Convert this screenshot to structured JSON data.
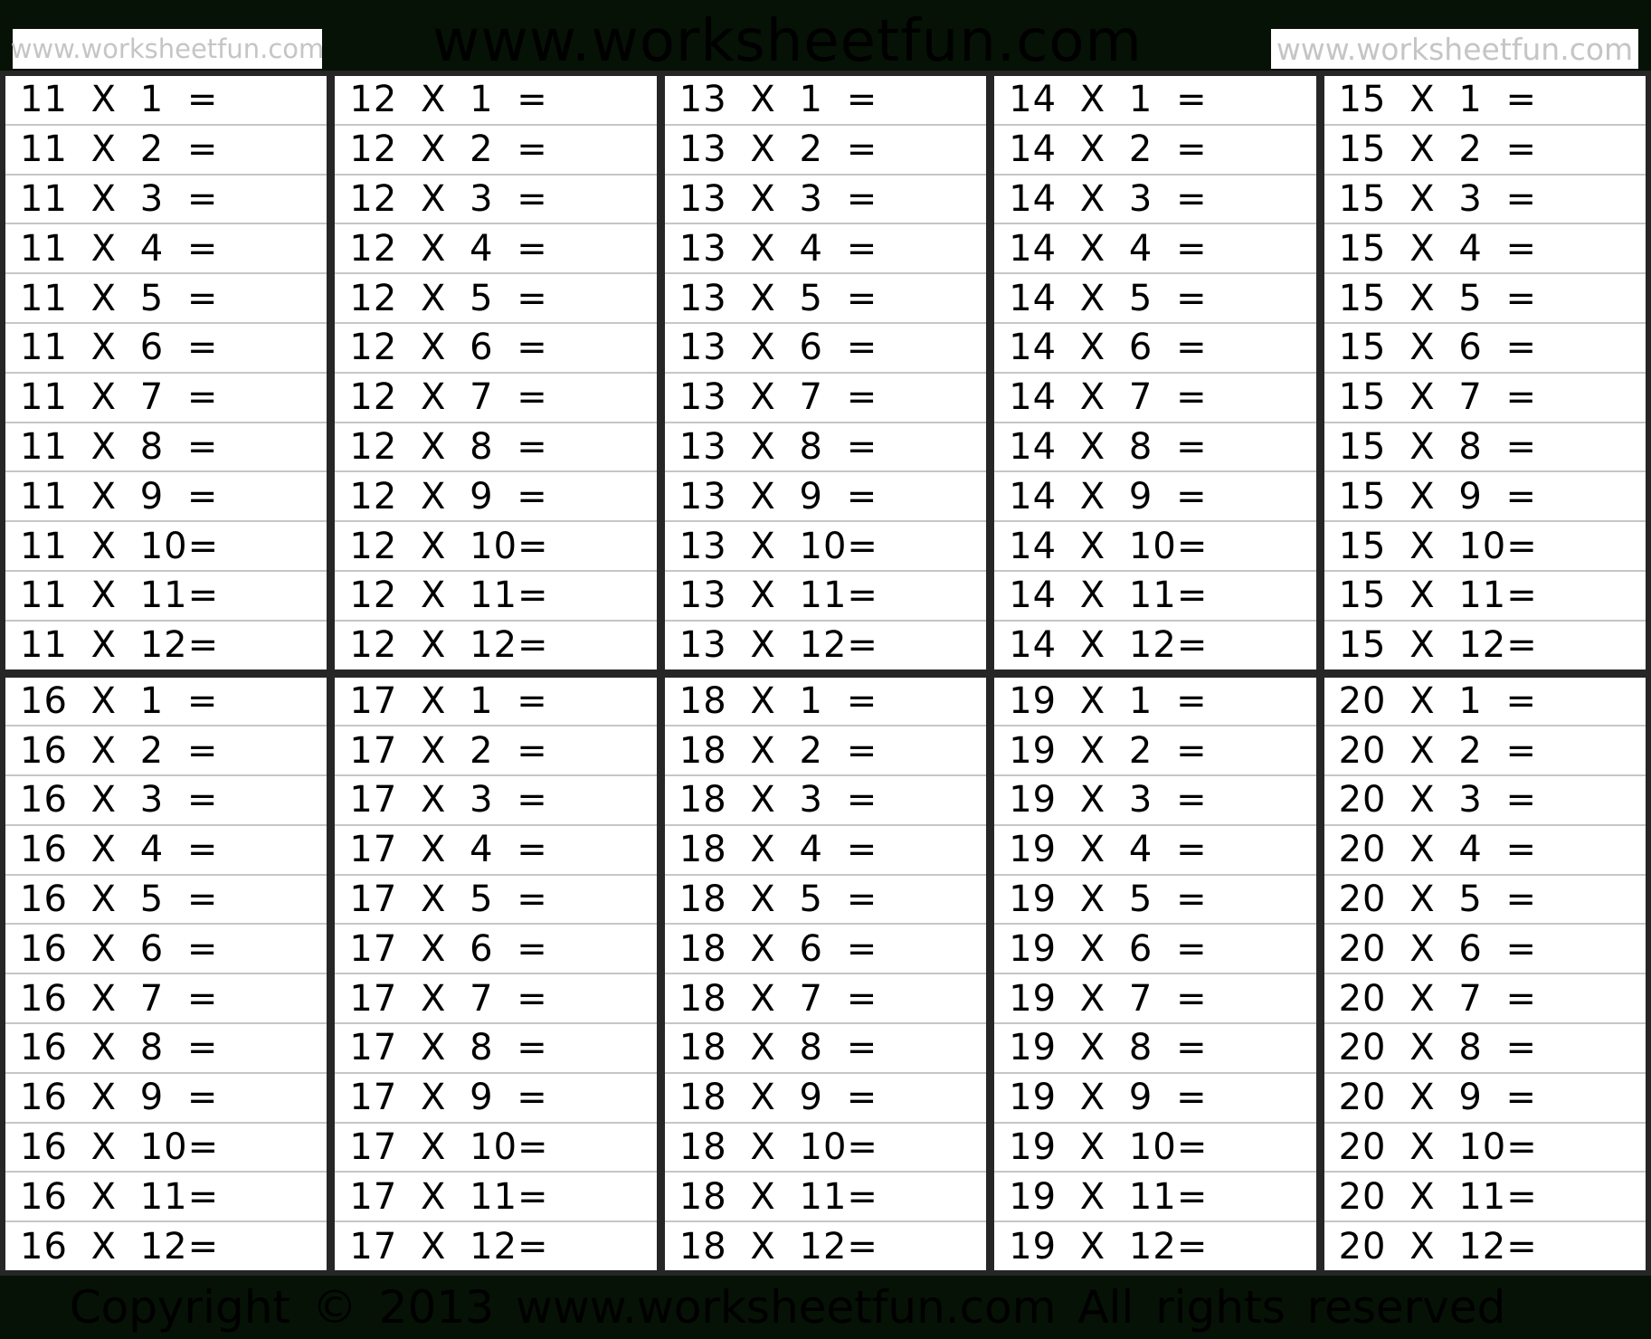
{
  "header": {
    "watermark_box_left": "www.worksheetfun.com",
    "watermark_center": "www.worksheetfun.com",
    "watermark_box_right": "www.worksheetfun.com"
  },
  "footer": {
    "copyright": "Copyright © 2013 www.worksheetfun.com All rights reserved"
  },
  "colors": {
    "page_background": "#061206",
    "table_border": "#262626",
    "row_divider": "#c6c6c6",
    "cell_background": "#ffffff",
    "text": "#000000",
    "watermark_box_background": "#ffffff",
    "watermark_box_text": "#c5c5c5",
    "watermark_center_text": "#000000"
  },
  "tables": [
    {
      "base": 11,
      "rows": [
        "11 X 1 =",
        "11 X 2 =",
        "11 X 3 =",
        "11 X 4 =",
        "11 X 5 =",
        "11 X 6 =",
        "11 X 7 =",
        "11 X 8 =",
        "11 X 9 =",
        "11 X 10=",
        "11 X 11=",
        "11 X 12="
      ]
    },
    {
      "base": 12,
      "rows": [
        "12 X 1 =",
        "12 X 2 =",
        "12 X 3 =",
        "12 X 4 =",
        "12 X 5 =",
        "12 X 6 =",
        "12 X 7 =",
        "12 X 8 =",
        "12 X 9 =",
        "12 X 10=",
        "12 X 11=",
        "12 X 12="
      ]
    },
    {
      "base": 13,
      "rows": [
        "13 X 1 =",
        "13 X 2 =",
        "13 X 3 =",
        "13 X 4 =",
        "13 X 5 =",
        "13 X 6 =",
        "13 X 7 =",
        "13 X 8 =",
        "13 X 9 =",
        "13 X 10=",
        "13 X 11=",
        "13 X 12="
      ]
    },
    {
      "base": 14,
      "rows": [
        "14 X 1 =",
        "14 X 2 =",
        "14 X 3 =",
        "14 X 4 =",
        "14 X 5 =",
        "14 X 6 =",
        "14 X 7 =",
        "14 X 8 =",
        "14 X 9 =",
        "14 X 10=",
        "14 X 11=",
        "14 X 12="
      ]
    },
    {
      "base": 15,
      "rows": [
        "15 X 1 =",
        "15 X 2 =",
        "15 X 3 =",
        "15 X 4 =",
        "15 X 5 =",
        "15 X 6 =",
        "15 X 7 =",
        "15 X 8 =",
        "15 X 9 =",
        "15 X 10=",
        "15 X 11=",
        "15 X 12="
      ]
    },
    {
      "base": 16,
      "rows": [
        "16 X 1 =",
        "16 X 2 =",
        "16 X 3 =",
        "16 X 4 =",
        "16 X 5 =",
        "16 X 6 =",
        "16 X 7 =",
        "16 X 8 =",
        "16 X 9 =",
        "16 X 10=",
        "16 X 11=",
        "16 X 12="
      ]
    },
    {
      "base": 17,
      "rows": [
        "17 X 1 =",
        "17 X 2 =",
        "17 X 3 =",
        "17 X 4 =",
        "17 X 5 =",
        "17 X 6 =",
        "17 X 7 =",
        "17 X 8 =",
        "17 X 9 =",
        "17 X 10=",
        "17 X 11=",
        "17 X 12="
      ]
    },
    {
      "base": 18,
      "rows": [
        "18 X 1 =",
        "18 X 2 =",
        "18 X 3 =",
        "18 X 4 =",
        "18 X 5 =",
        "18 X 6 =",
        "18 X 7 =",
        "18 X 8 =",
        "18 X 9 =",
        "18 X 10=",
        "18 X 11=",
        "18 X 12="
      ]
    },
    {
      "base": 19,
      "rows": [
        "19 X 1 =",
        "19 X 2 =",
        "19 X 3 =",
        "19 X 4 =",
        "19 X 5 =",
        "19 X 6 =",
        "19 X 7 =",
        "19 X 8 =",
        "19 X 9 =",
        "19 X 10=",
        "19 X 11=",
        "19 X 12="
      ]
    },
    {
      "base": 20,
      "rows": [
        "20 X 1 =",
        "20 X 2 =",
        "20 X 3 =",
        "20 X 4 =",
        "20 X 5 =",
        "20 X 6 =",
        "20 X 7 =",
        "20 X 8 =",
        "20 X 9 =",
        "20 X 10=",
        "20 X 11=",
        "20 X 12="
      ]
    }
  ]
}
